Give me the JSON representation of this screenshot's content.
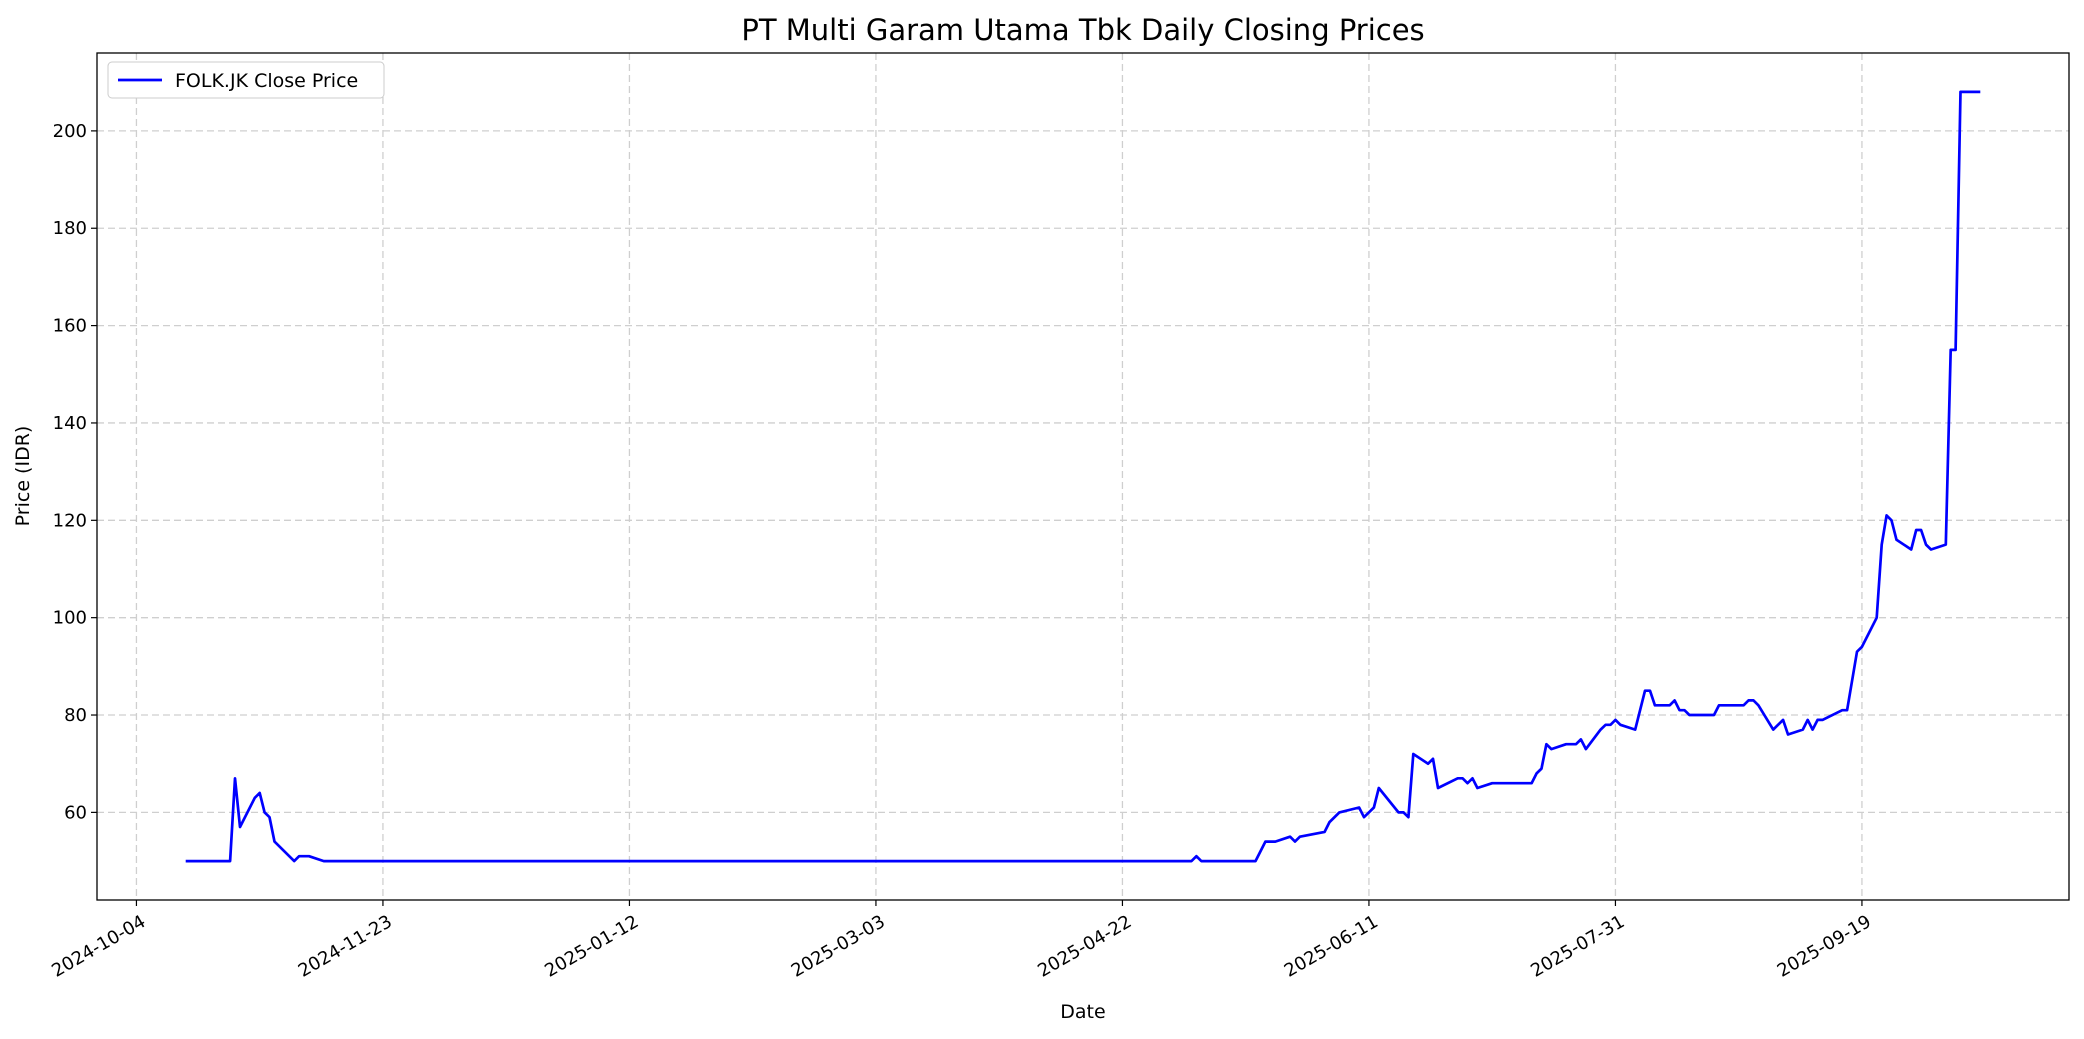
{
  "chart_data": {
    "type": "line",
    "title": "PT Multi Garam Utama Tbk Daily Closing Prices",
    "xlabel": "Date",
    "ylabel": "Price (IDR)",
    "xlim": [
      "2024-09-26",
      "2025-10-31"
    ],
    "ylim": [
      42,
      216
    ],
    "x_ticks": [
      "2024-10-04",
      "2024-11-23",
      "2025-01-12",
      "2025-03-03",
      "2025-04-22",
      "2025-06-11",
      "2025-07-31",
      "2025-09-19"
    ],
    "y_ticks": [
      60,
      80,
      100,
      120,
      140,
      160,
      180,
      200
    ],
    "grid": true,
    "legend_position": "top-left",
    "series": [
      {
        "name": "FOLK.JK Close Price",
        "color": "#0000ff",
        "points": [
          [
            "2024-10-14",
            50
          ],
          [
            "2024-10-23",
            50
          ],
          [
            "2024-10-24",
            67
          ],
          [
            "2024-10-25",
            57
          ],
          [
            "2024-10-28",
            63
          ],
          [
            "2024-10-29",
            64
          ],
          [
            "2024-10-30",
            60
          ],
          [
            "2024-10-31",
            59
          ],
          [
            "2024-11-01",
            54
          ],
          [
            "2024-11-05",
            50
          ],
          [
            "2024-11-06",
            51
          ],
          [
            "2024-11-08",
            51
          ],
          [
            "2024-11-11",
            50
          ],
          [
            "2025-05-06",
            50
          ],
          [
            "2025-05-07",
            51
          ],
          [
            "2025-05-08",
            50
          ],
          [
            "2025-05-19",
            50
          ],
          [
            "2025-05-21",
            54
          ],
          [
            "2025-05-23",
            54
          ],
          [
            "2025-05-26",
            55
          ],
          [
            "2025-05-27",
            54
          ],
          [
            "2025-05-28",
            55
          ],
          [
            "2025-06-02",
            56
          ],
          [
            "2025-06-03",
            58
          ],
          [
            "2025-06-05",
            60
          ],
          [
            "2025-06-09",
            61
          ],
          [
            "2025-06-10",
            59
          ],
          [
            "2025-06-12",
            61
          ],
          [
            "2025-06-13",
            65
          ],
          [
            "2025-06-17",
            60
          ],
          [
            "2025-06-18",
            60
          ],
          [
            "2025-06-19",
            59
          ],
          [
            "2025-06-20",
            72
          ],
          [
            "2025-06-23",
            70
          ],
          [
            "2025-06-24",
            71
          ],
          [
            "2025-06-25",
            65
          ],
          [
            "2025-06-29",
            67
          ],
          [
            "2025-06-30",
            67
          ],
          [
            "2025-07-01",
            66
          ],
          [
            "2025-07-02",
            67
          ],
          [
            "2025-07-03",
            65
          ],
          [
            "2025-07-06",
            66
          ],
          [
            "2025-07-14",
            66
          ],
          [
            "2025-07-15",
            68
          ],
          [
            "2025-07-16",
            69
          ],
          [
            "2025-07-17",
            74
          ],
          [
            "2025-07-18",
            73
          ],
          [
            "2025-07-21",
            74
          ],
          [
            "2025-07-23",
            74
          ],
          [
            "2025-07-24",
            75
          ],
          [
            "2025-07-25",
            73
          ],
          [
            "2025-07-28",
            77
          ],
          [
            "2025-07-29",
            78
          ],
          [
            "2025-07-30",
            78
          ],
          [
            "2025-07-31",
            79
          ],
          [
            "2025-08-01",
            78
          ],
          [
            "2025-08-04",
            77
          ],
          [
            "2025-08-06",
            85
          ],
          [
            "2025-08-07",
            85
          ],
          [
            "2025-08-08",
            82
          ],
          [
            "2025-08-11",
            82
          ],
          [
            "2025-08-12",
            83
          ],
          [
            "2025-08-13",
            81
          ],
          [
            "2025-08-14",
            81
          ],
          [
            "2025-08-15",
            80
          ],
          [
            "2025-08-20",
            80
          ],
          [
            "2025-08-21",
            82
          ],
          [
            "2025-08-26",
            82
          ],
          [
            "2025-08-27",
            83
          ],
          [
            "2025-08-28",
            83
          ],
          [
            "2025-08-29",
            82
          ],
          [
            "2025-09-01",
            77
          ],
          [
            "2025-09-03",
            79
          ],
          [
            "2025-09-04",
            76
          ],
          [
            "2025-09-07",
            77
          ],
          [
            "2025-09-08",
            79
          ],
          [
            "2025-09-09",
            77
          ],
          [
            "2025-09-10",
            79
          ],
          [
            "2025-09-11",
            79
          ],
          [
            "2025-09-15",
            81
          ],
          [
            "2025-09-16",
            81
          ],
          [
            "2025-09-18",
            93
          ],
          [
            "2025-09-19",
            94
          ],
          [
            "2025-09-22",
            100
          ],
          [
            "2025-09-23",
            115
          ],
          [
            "2025-09-24",
            121
          ],
          [
            "2025-09-25",
            120
          ],
          [
            "2025-09-26",
            116
          ],
          [
            "2025-09-29",
            114
          ],
          [
            "2025-09-30",
            118
          ],
          [
            "2025-10-01",
            118
          ],
          [
            "2025-10-02",
            115
          ],
          [
            "2025-10-03",
            114
          ],
          [
            "2025-10-06",
            115
          ],
          [
            "2025-10-07",
            155
          ],
          [
            "2025-10-08",
            155
          ],
          [
            "2025-10-09",
            208
          ],
          [
            "2025-10-13",
            208
          ]
        ]
      }
    ]
  }
}
